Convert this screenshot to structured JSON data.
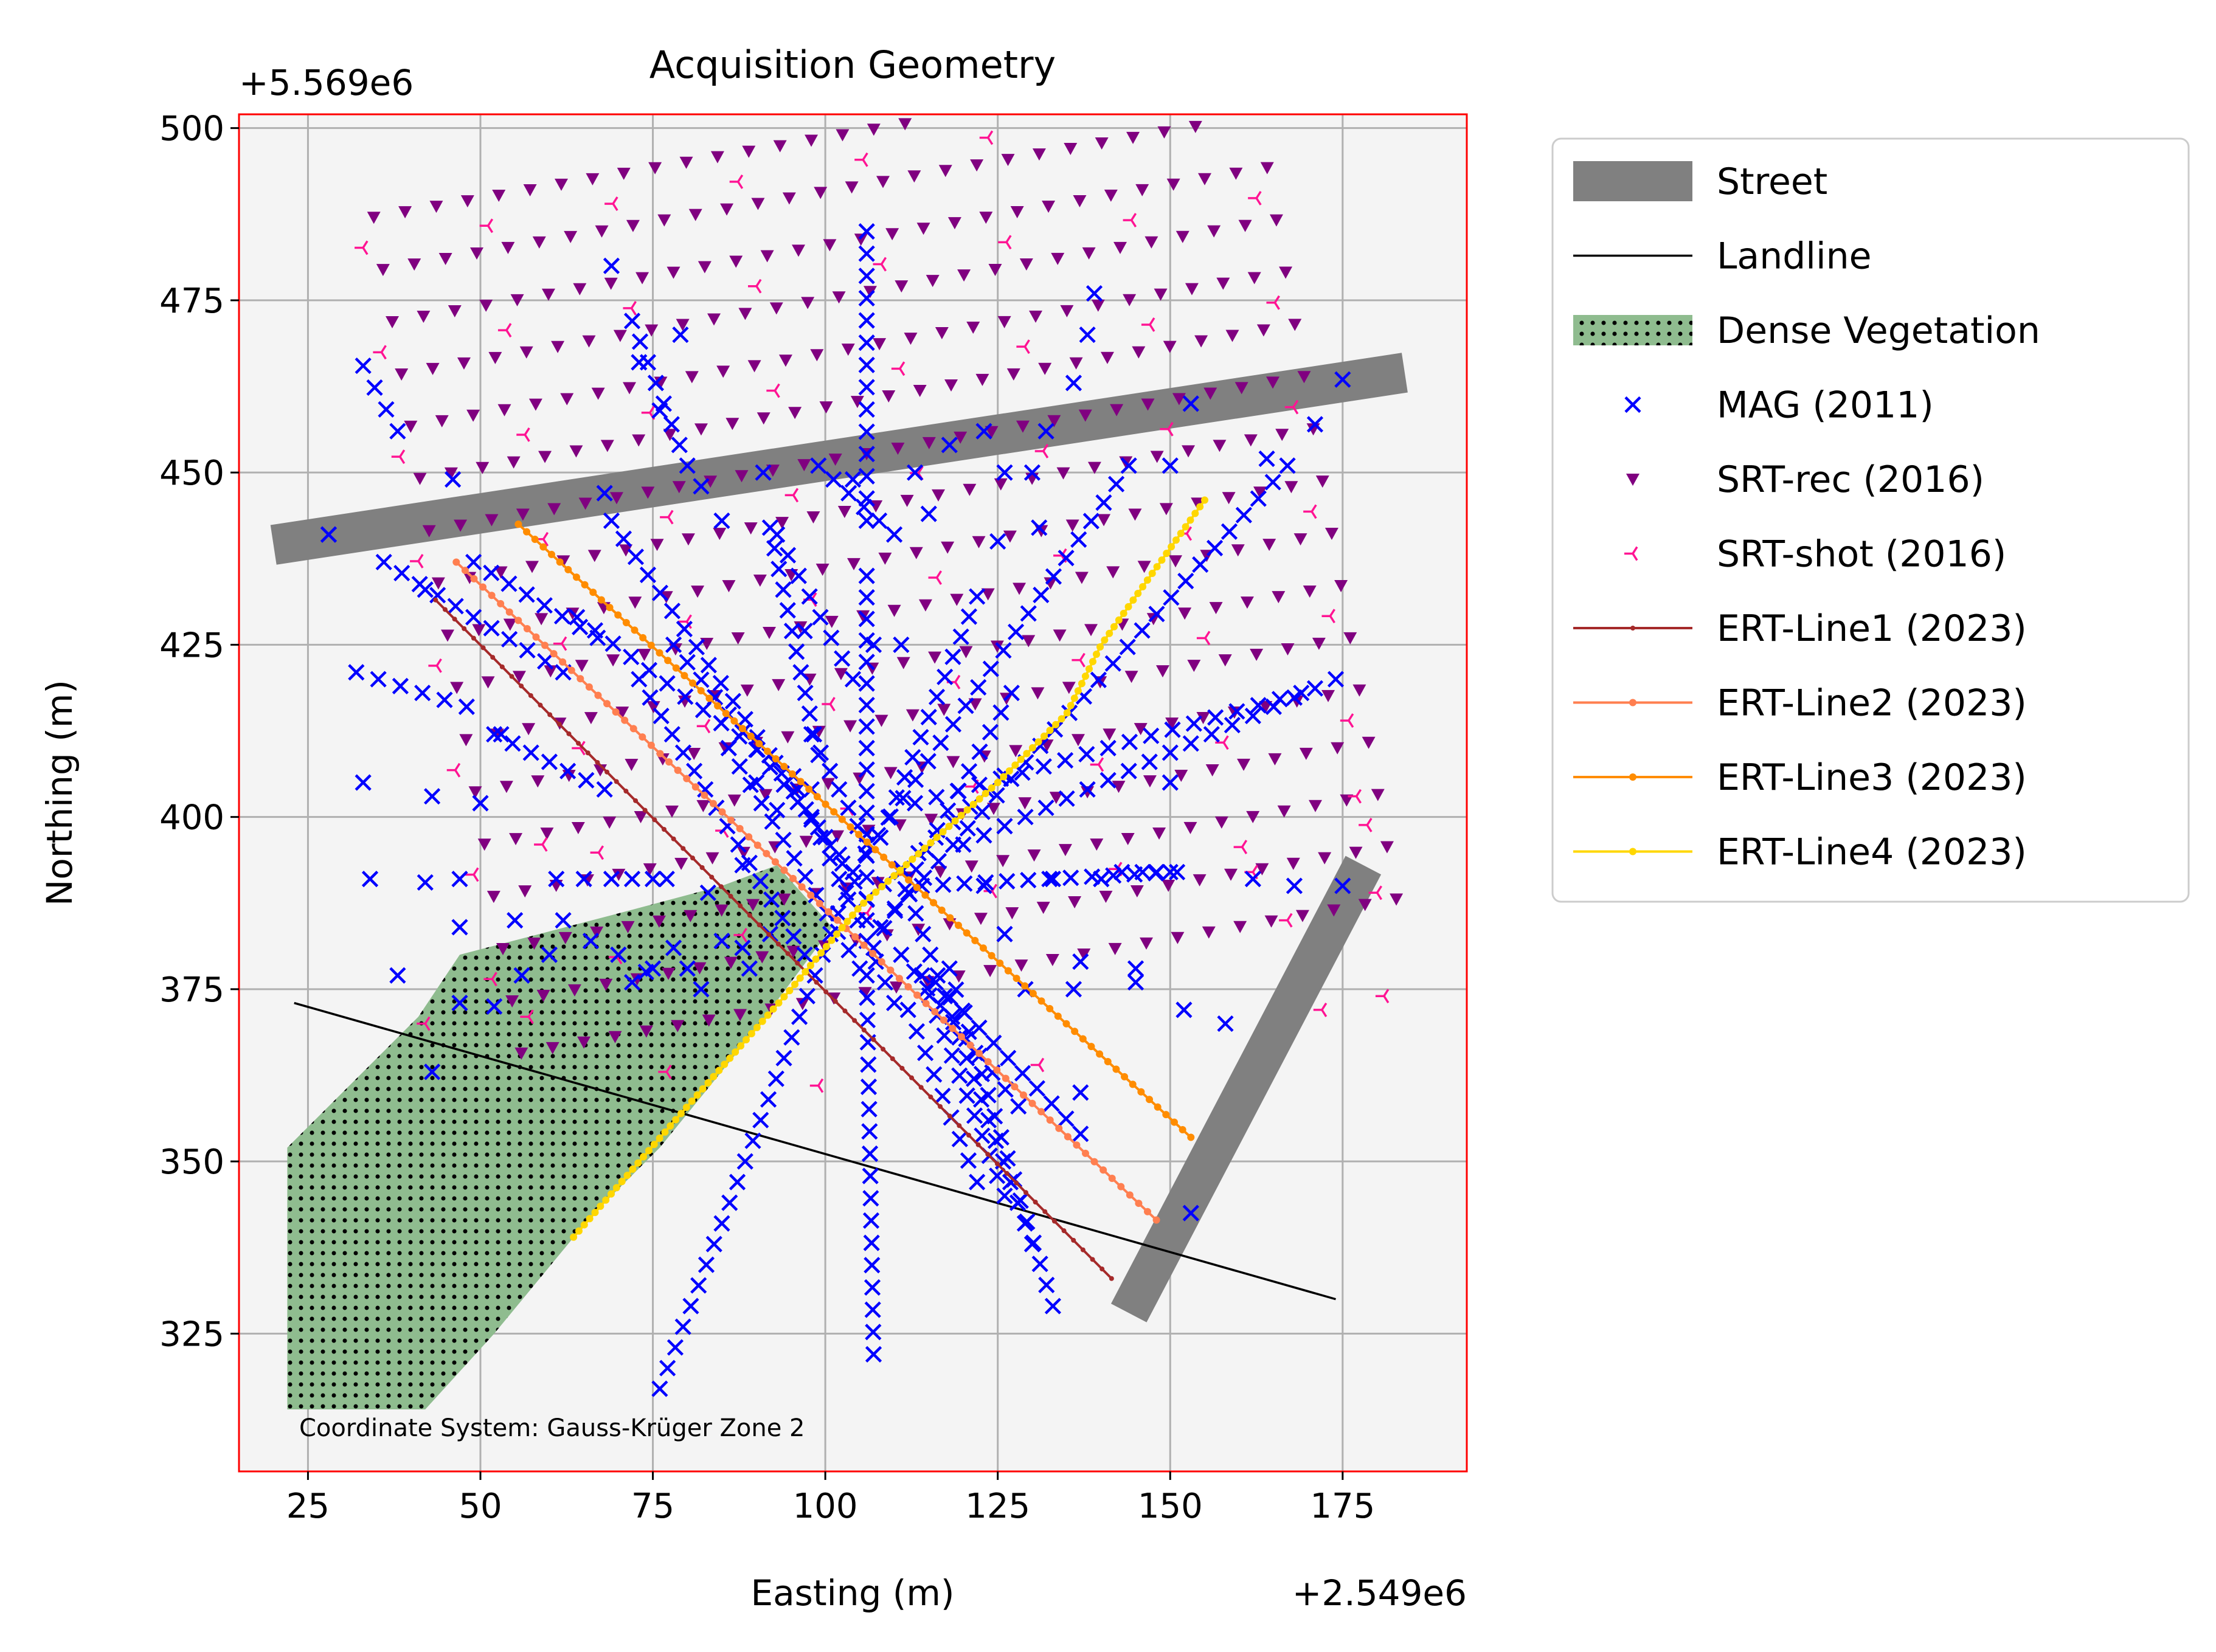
{
  "chart_data": {
    "type": "scatter",
    "title": "Acquisition Geometry",
    "xlabel": "Easting (m)",
    "ylabel": "Northing (m)",
    "x_offset_label": "+2.549e6",
    "y_offset_label": "+5.569e6",
    "xlim": [
      15,
      193
    ],
    "ylim": [
      305,
      502
    ],
    "xticks": [
      25,
      50,
      75,
      100,
      125,
      150,
      175
    ],
    "yticks": [
      325,
      350,
      375,
      400,
      425,
      450,
      475,
      500
    ],
    "grid": true,
    "legend_position": "outside-right",
    "annotation": "Coordinate System: Gauss-Krüger Zone 2",
    "plot_background": "#f4f4f4",
    "frame_color": "#ff0000",
    "street": {
      "name": "Street",
      "color": "#808080",
      "segments": [
        [
          [
            20,
            439.5
          ],
          [
            184,
            464.5
          ]
        ],
        [
          [
            144,
            328
          ],
          [
            178,
            393
          ]
        ]
      ]
    },
    "landline": {
      "name": "Landline",
      "color": "#000000",
      "points": [
        [
          23,
          373
        ],
        [
          174,
          330
        ]
      ]
    },
    "vegetation": {
      "name": "Dense Vegetation",
      "color": "#8fbc8f",
      "polygon": [
        [
          22,
          352
        ],
        [
          41,
          371
        ],
        [
          47,
          380
        ],
        [
          70,
          386
        ],
        [
          85,
          390
        ],
        [
          93,
          393
        ],
        [
          101,
          384
        ],
        [
          89,
          368
        ],
        [
          76,
          352
        ],
        [
          66,
          342
        ],
        [
          52,
          325
        ],
        [
          42,
          314
        ],
        [
          22,
          314
        ]
      ]
    },
    "mag": {
      "name": "MAG (2011)",
      "color": "#0000ff",
      "lines": [
        [
          [
            33,
            465.5
          ],
          [
            38,
            456
          ]
        ],
        [
          [
            32,
            421
          ],
          [
            48,
            416
          ]
        ],
        [
          [
            72,
            472
          ],
          [
            80,
            451
          ]
        ],
        [
          [
            106,
            485
          ],
          [
            106,
            443
          ]
        ],
        [
          [
            106,
            435
          ],
          [
            106,
            385
          ]
        ],
        [
          [
            98,
            412
          ],
          [
            106,
            396
          ]
        ],
        [
          [
            106,
            377
          ],
          [
            107,
            322
          ]
        ],
        [
          [
            86,
            410
          ],
          [
            105,
            378
          ]
        ],
        [
          [
            92,
            442
          ],
          [
            99,
            409
          ]
        ],
        [
          [
            64,
            429
          ],
          [
            98,
            404
          ]
        ],
        [
          [
            36,
            437
          ],
          [
            62,
            421
          ]
        ],
        [
          [
            49,
            437
          ],
          [
            67,
            426
          ]
        ],
        [
          [
            52,
            412
          ],
          [
            68,
            404
          ]
        ],
        [
          [
            69,
            443
          ],
          [
            106,
            388
          ]
        ],
        [
          [
            78,
            425
          ],
          [
            104,
            392
          ]
        ],
        [
          [
            98,
            400
          ],
          [
            110,
            373
          ]
        ],
        [
          [
            112,
            372
          ],
          [
            122,
            347
          ]
        ],
        [
          [
            111,
            380
          ],
          [
            128,
            358
          ]
        ],
        [
          [
            116,
            376
          ],
          [
            137,
            354
          ]
        ],
        [
          [
            76,
            317
          ],
          [
            103,
            389
          ]
        ],
        [
          [
            73,
            420
          ],
          [
            97,
            380
          ]
        ],
        [
          [
            108,
            397
          ],
          [
            122,
            432
          ]
        ],
        [
          [
            107,
            381
          ],
          [
            127,
            418
          ]
        ],
        [
          [
            114,
            377
          ],
          [
            126,
            345
          ]
        ],
        [
          [
            106,
            388
          ],
          [
            126,
            406
          ]
        ],
        [
          [
            111,
            392
          ],
          [
            130,
            338
          ]
        ],
        [
          [
            118,
            378
          ],
          [
            133,
            329
          ]
        ],
        [
          [
            108,
            384
          ],
          [
            167,
            451
          ]
        ],
        [
          [
            104,
            392
          ],
          [
            144,
            451
          ]
        ],
        [
          [
            113,
            402
          ],
          [
            169,
            418
          ]
        ],
        [
          [
            120,
            396
          ],
          [
            174,
            420
          ]
        ],
        [
          [
            114,
            390
          ],
          [
            151,
            392
          ]
        ],
        [
          [
            93,
            441
          ],
          [
            104,
            420
          ]
        ],
        [
          [
            99,
            451
          ],
          [
            110,
            441
          ]
        ]
      ],
      "points": [
        [
          28,
          441
        ],
        [
          33,
          405
        ],
        [
          34,
          391
        ],
        [
          38,
          377
        ],
        [
          42,
          390.5
        ],
        [
          43,
          403
        ],
        [
          42,
          433
        ],
        [
          46,
          449
        ],
        [
          50,
          402
        ],
        [
          52,
          372.5
        ],
        [
          53,
          412
        ],
        [
          55,
          385
        ],
        [
          56,
          377
        ],
        [
          60,
          380
        ],
        [
          62,
          385
        ],
        [
          61,
          391
        ],
        [
          65,
          391
        ],
        [
          69,
          391
        ],
        [
          72,
          391
        ],
        [
          75,
          391
        ],
        [
          77,
          391
        ],
        [
          66,
          382
        ],
        [
          70,
          380
        ],
        [
          72,
          376
        ],
        [
          75,
          378
        ],
        [
          78,
          381
        ],
        [
          80,
          378
        ],
        [
          82,
          375
        ],
        [
          85,
          382
        ],
        [
          88,
          381
        ],
        [
          89,
          378
        ],
        [
          92,
          383
        ],
        [
          47,
          373
        ],
        [
          47,
          384
        ],
        [
          47,
          391
        ],
        [
          43,
          363
        ],
        [
          74,
          377.5
        ],
        [
          68,
          447
        ],
        [
          69,
          480
        ],
        [
          76,
          459
        ],
        [
          73,
          466
        ],
        [
          82,
          448
        ],
        [
          79,
          470
        ],
        [
          83,
          389
        ],
        [
          85,
          443
        ],
        [
          91,
          450
        ],
        [
          104,
          449
        ],
        [
          111,
          425
        ],
        [
          113,
          450
        ],
        [
          115,
          444
        ],
        [
          118,
          454
        ],
        [
          123,
          456
        ],
        [
          125,
          440
        ],
        [
          126,
          450
        ],
        [
          130,
          450
        ],
        [
          132,
          456
        ],
        [
          136,
          463
        ],
        [
          138,
          470
        ],
        [
          139,
          476
        ],
        [
          150,
          451
        ],
        [
          153,
          460
        ],
        [
          164,
          452
        ],
        [
          171,
          457
        ],
        [
          175,
          463.5
        ],
        [
          131,
          442
        ],
        [
          150,
          405
        ],
        [
          158,
          370
        ],
        [
          168,
          390
        ],
        [
          175,
          390
        ],
        [
          152,
          372
        ],
        [
          137,
          360
        ],
        [
          140,
          391
        ],
        [
          143,
          392
        ],
        [
          146,
          392
        ],
        [
          148,
          392
        ],
        [
          150,
          392
        ],
        [
          137,
          379
        ],
        [
          145,
          378
        ],
        [
          145,
          376
        ],
        [
          123,
          390
        ],
        [
          126,
          383
        ],
        [
          129,
          375
        ],
        [
          133,
          391
        ],
        [
          136,
          375
        ],
        [
          140,
          391
        ],
        [
          153,
          342.5
        ],
        [
          162,
          391
        ],
        [
          28,
          441
        ],
        [
          107,
          425
        ],
        [
          97,
          427
        ],
        [
          88,
          393
        ],
        [
          90,
          405
        ],
        [
          93,
          401
        ],
        [
          96,
          404
        ]
      ]
    },
    "srt_rec": {
      "name": "SRT-rec (2016)",
      "color": "#800080"
    },
    "srt_shot": {
      "name": "SRT-shot (2016)",
      "color": "#ff1493"
    },
    "series": [
      {
        "name": "ERT-Line1 (2023)",
        "color": "#a52a2a",
        "start": [
          43.5,
          431.5
        ],
        "end": [
          141.5,
          333
        ],
        "n": 72,
        "marker_r": 4
      },
      {
        "name": "ERT-Line2 (2023)",
        "color": "#ff7f50",
        "start": [
          46.5,
          437
        ],
        "end": [
          148,
          341.5
        ],
        "n": 80,
        "marker_r": 6
      },
      {
        "name": "ERT-Line3 (2023)",
        "color": "#ff8c00",
        "start": [
          55.5,
          442.5
        ],
        "end": [
          153,
          353.5
        ],
        "n": 82,
        "marker_r": 6
      },
      {
        "name": "ERT-Line4 (2023)",
        "color": "#ffd700",
        "polyline": [
          [
            63.5,
            339
          ],
          [
            80,
            358
          ],
          [
            95,
            375
          ],
          [
            105,
            387
          ],
          [
            125,
            405
          ],
          [
            135,
            415
          ],
          [
            140,
            425
          ],
          [
            155,
            446
          ]
        ],
        "n": 120,
        "marker_r": 6
      }
    ],
    "legend": [
      "Street",
      "Landline",
      "Dense Vegetation",
      "MAG (2011)",
      "SRT-rec (2016)",
      "SRT-shot (2016)",
      "ERT-Line1 (2023)",
      "ERT-Line2 (2023)",
      "ERT-Line3 (2023)",
      "ERT-Line4 (2023)"
    ]
  }
}
